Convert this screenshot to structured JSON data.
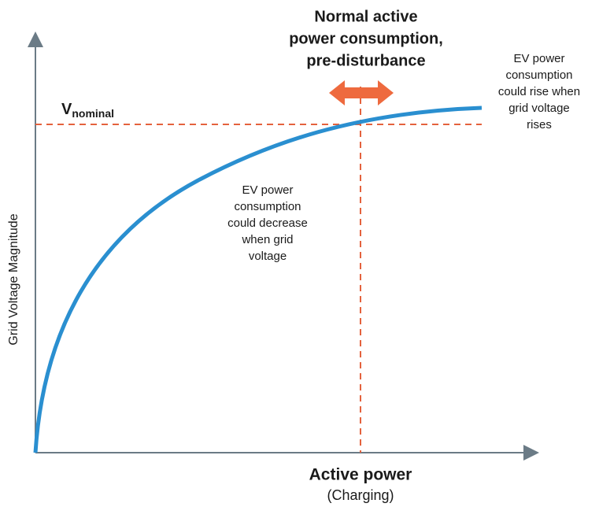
{
  "title": [
    "Normal active",
    "power consumption,",
    "pre-disturbance"
  ],
  "v_label": {
    "main": "V",
    "sub": "nominal"
  },
  "right_note": [
    "EV power",
    "consumption",
    "could rise when",
    "grid voltage",
    "rises"
  ],
  "middle_note": [
    "EV power",
    "consumption",
    "could decrease",
    "when grid",
    "voltage"
  ],
  "y_axis_label": "Grid Voltage Magnitude",
  "x_axis_label": "Active power",
  "x_axis_sublabel": "(Charging)"
}
